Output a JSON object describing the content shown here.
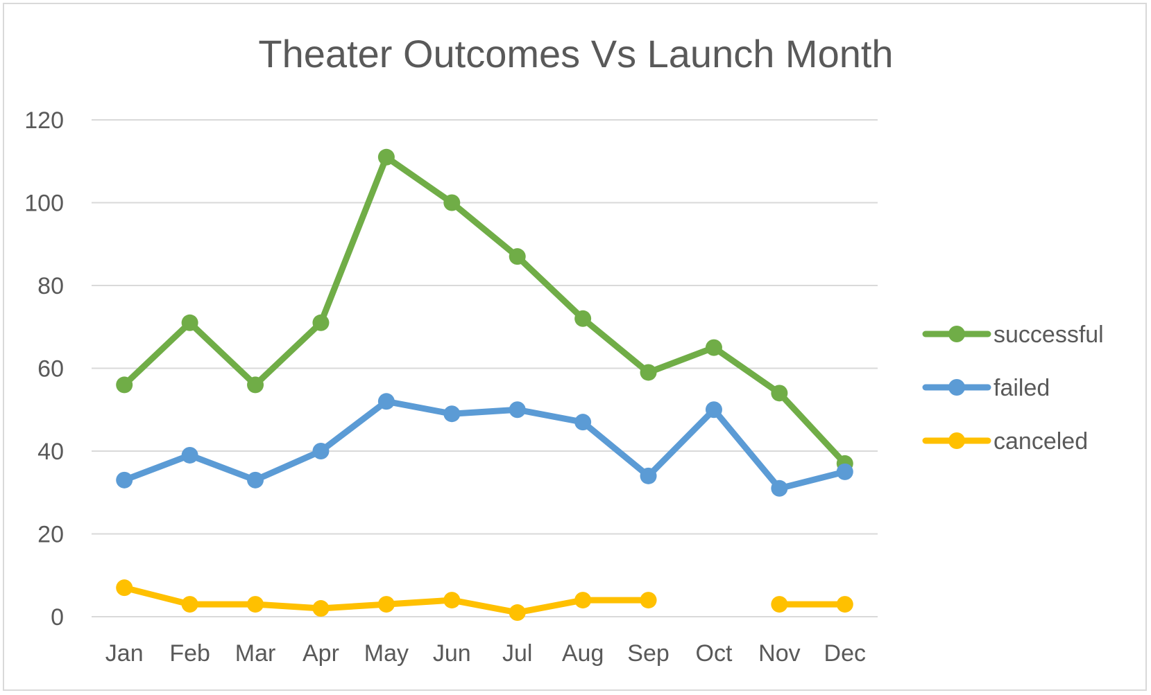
{
  "chart_data": {
    "type": "line",
    "title": "Theater Outcomes Vs Launch Month",
    "xlabel": "",
    "ylabel": "",
    "categories": [
      "Jan",
      "Feb",
      "Mar",
      "Apr",
      "May",
      "Jun",
      "Jul",
      "Aug",
      "Sep",
      "Oct",
      "Nov",
      "Dec"
    ],
    "ylim": [
      0,
      120
    ],
    "yticks": [
      0,
      20,
      40,
      60,
      80,
      100,
      120
    ],
    "grid": true,
    "legend_position": "right",
    "series": [
      {
        "name": "successful",
        "color": "#70AD47",
        "values": [
          56,
          71,
          56,
          71,
          111,
          100,
          87,
          72,
          59,
          65,
          54,
          37
        ]
      },
      {
        "name": "failed",
        "color": "#5B9BD5",
        "values": [
          33,
          39,
          33,
          40,
          52,
          49,
          50,
          47,
          34,
          50,
          31,
          35
        ]
      },
      {
        "name": "canceled",
        "color": "#FFC000",
        "values": [
          7,
          3,
          3,
          2,
          3,
          4,
          1,
          4,
          4,
          null,
          3,
          3
        ]
      }
    ]
  }
}
